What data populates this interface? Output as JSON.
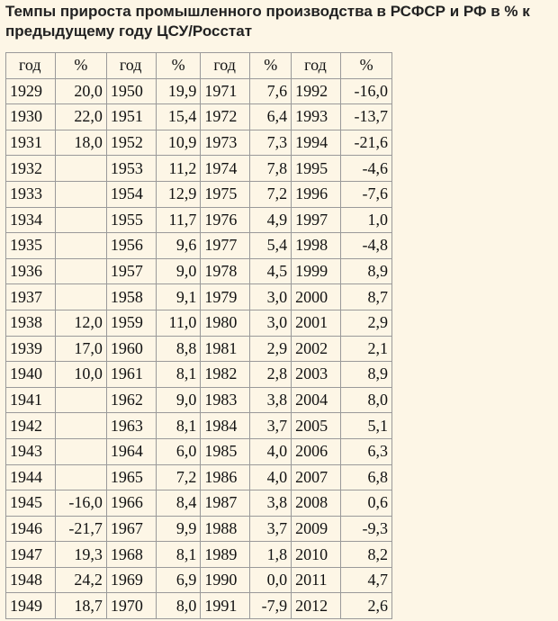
{
  "header": {
    "title": "Темпы прироста промышленного производства в РСФСР и РФ в % к предыдущему году ЦСУ/Росстат"
  },
  "table": {
    "columns": [
      "год",
      "%",
      "год",
      "%",
      "год",
      "%",
      "год",
      "%"
    ],
    "rows": [
      [
        "1929",
        "20,0",
        "1950",
        "19,9",
        "1971",
        "7,6",
        "1992",
        "-16,0"
      ],
      [
        "1930",
        "22,0",
        "1951",
        "15,4",
        "1972",
        "6,4",
        "1993",
        "-13,7"
      ],
      [
        "1931",
        "18,0",
        "1952",
        "10,9",
        "1973",
        "7,3",
        "1994",
        "-21,6"
      ],
      [
        "1932",
        null,
        "1953",
        "11,2",
        "1974",
        "7,8",
        "1995",
        "-4,6"
      ],
      [
        "1933",
        null,
        "1954",
        "12,9",
        "1975",
        "7,2",
        "1996",
        "-7,6"
      ],
      [
        "1934",
        null,
        "1955",
        "11,7",
        "1976",
        "4,9",
        "1997",
        "1,0"
      ],
      [
        "1935",
        null,
        "1956",
        "9,6",
        "1977",
        "5,4",
        "1998",
        "-4,8"
      ],
      [
        "1936",
        null,
        "1957",
        "9,0",
        "1978",
        "4,5",
        "1999",
        "8,9"
      ],
      [
        "1937",
        null,
        "1958",
        "9,1",
        "1979",
        "3,0",
        "2000",
        "8,7"
      ],
      [
        "1938",
        "12,0",
        "1959",
        "11,0",
        "1980",
        "3,0",
        "2001",
        "2,9"
      ],
      [
        "1939",
        "17,0",
        "1960",
        "8,8",
        "1981",
        "2,9",
        "2002",
        "2,1"
      ],
      [
        "1940",
        "10,0",
        "1961",
        "8,1",
        "1982",
        "2,8",
        "2003",
        "8,9"
      ],
      [
        "1941",
        null,
        "1962",
        "9,0",
        "1983",
        "3,8",
        "2004",
        "8,0"
      ],
      [
        "1942",
        null,
        "1963",
        "8,1",
        "1984",
        "3,7",
        "2005",
        "5,1"
      ],
      [
        "1943",
        null,
        "1964",
        "6,0",
        "1985",
        "4,0",
        "2006",
        "6,3"
      ],
      [
        "1944",
        null,
        "1965",
        "7,2",
        "1986",
        "4,0",
        "2007",
        "6,8"
      ],
      [
        "1945",
        "-16,0",
        "1966",
        "8,4",
        "1987",
        "3,8",
        "2008",
        "0,6"
      ],
      [
        "1946",
        "-21,7",
        "1967",
        "9,9",
        "1988",
        "3,7",
        "2009",
        "-9,3"
      ],
      [
        "1947",
        "19,3",
        "1968",
        "8,1",
        "1989",
        "1,8",
        "2010",
        "8,2"
      ],
      [
        "1948",
        "24,2",
        "1969",
        "6,9",
        "1990",
        "0,0",
        "2011",
        "4,7"
      ],
      [
        "1949",
        "18,7",
        "1970",
        "8,0",
        "1991",
        "-7,9",
        "2012",
        "2,6"
      ]
    ]
  }
}
